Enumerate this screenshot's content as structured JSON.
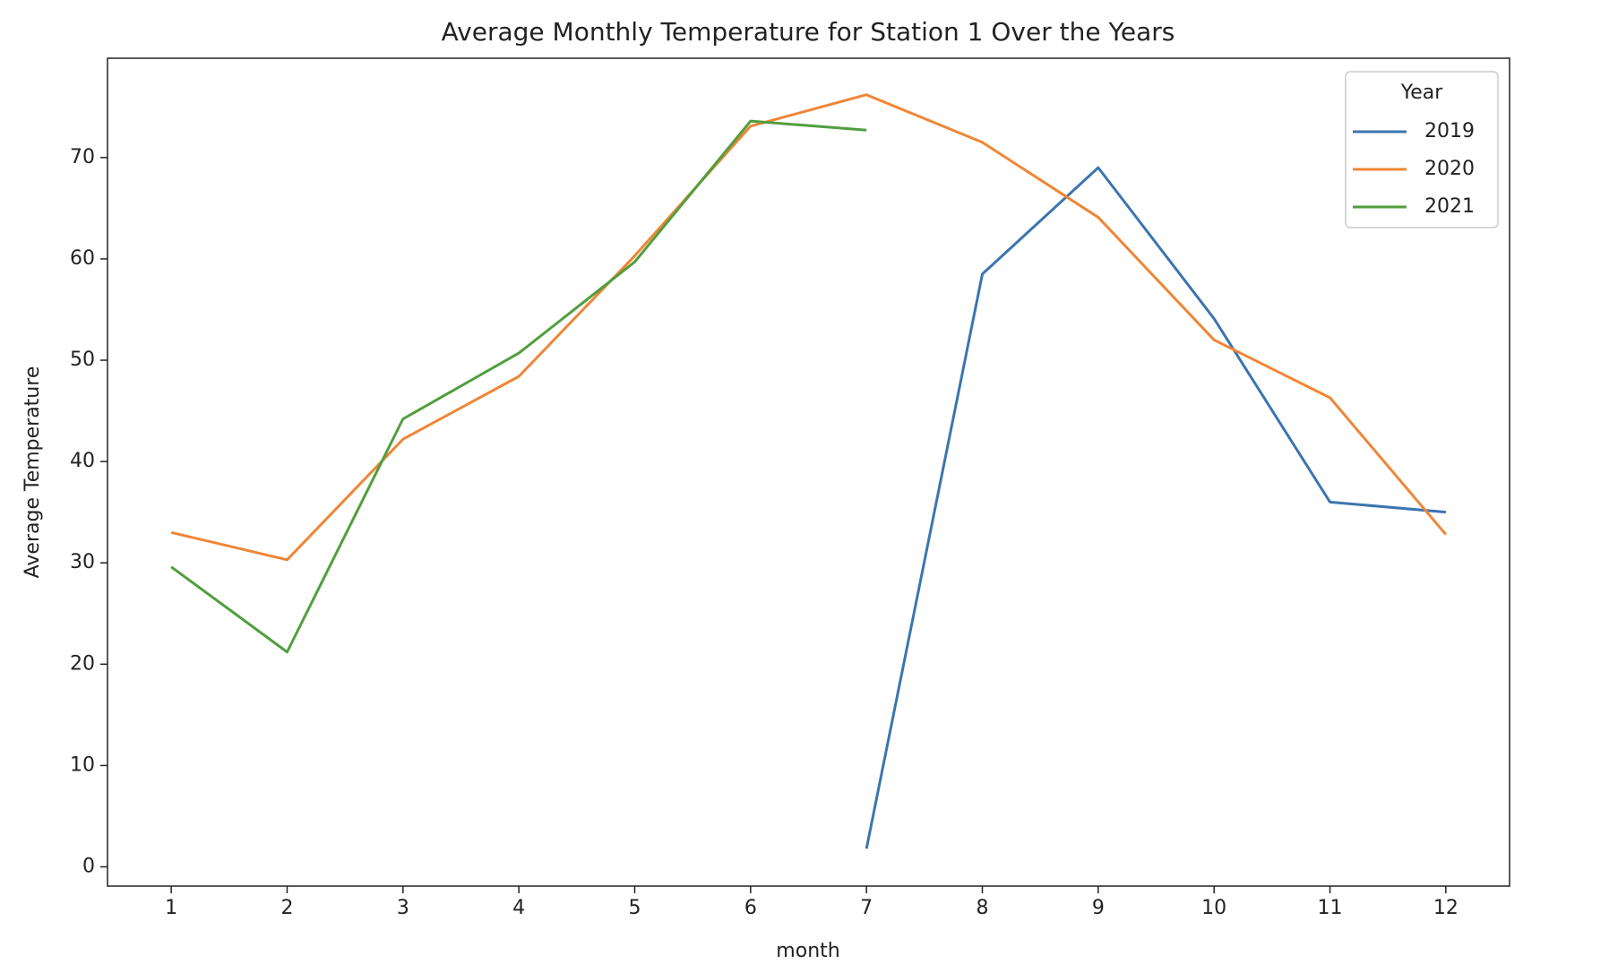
{
  "chart_data": {
    "type": "line",
    "title": "Average Monthly Temperature for Station 1 Over the Years",
    "x_label": "month",
    "y_label": "Average Temperature",
    "x": [
      1,
      2,
      3,
      4,
      5,
      6,
      7,
      8,
      9,
      10,
      11,
      12
    ],
    "xlim": [
      0.45,
      12.55
    ],
    "xticks": [
      1,
      2,
      3,
      4,
      5,
      6,
      7,
      8,
      9,
      10,
      11,
      12
    ],
    "ylim": [
      -1.9,
      79.8
    ],
    "yticks": [
      0,
      10,
      20,
      30,
      40,
      50,
      60,
      70
    ],
    "legend_title": "Year",
    "legend": "upper right",
    "series": [
      {
        "name": "2019",
        "color": "#3b75af",
        "values": [
          null,
          null,
          null,
          null,
          null,
          null,
          1.8,
          58.5,
          69.0,
          54.1,
          36.0,
          35.0
        ]
      },
      {
        "name": "2020",
        "color": "#ef8636",
        "values": [
          33.0,
          30.3,
          42.2,
          48.4,
          60.3,
          73.1,
          76.2,
          71.5,
          64.1,
          52.0,
          46.3,
          32.8
        ]
      },
      {
        "name": "2021",
        "color": "#519e3e",
        "values": [
          29.6,
          21.2,
          44.2,
          50.7,
          59.7,
          73.6,
          72.7,
          null,
          null,
          null,
          null,
          null
        ]
      }
    ]
  }
}
